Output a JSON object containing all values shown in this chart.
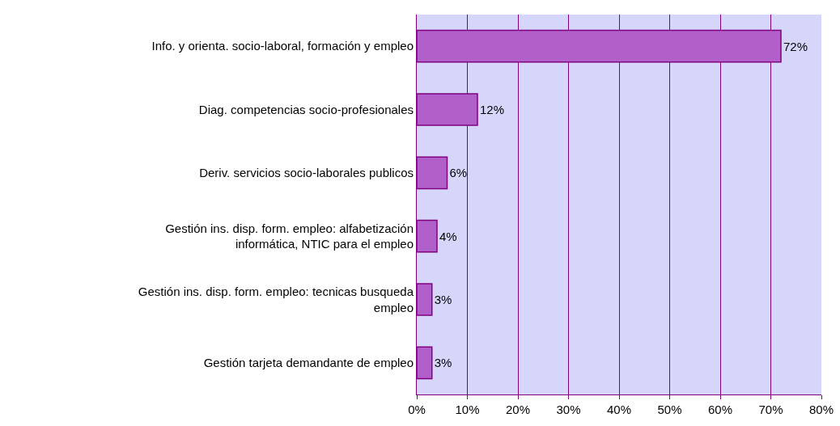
{
  "chart_data": {
    "type": "bar",
    "orientation": "horizontal",
    "categories": [
      "Info. y orienta. socio-laboral, formación y empleo",
      "Diag. competencias socio-profesionales",
      "Deriv. servicios socio-laborales publicos",
      "Gestión ins. disp. form. empleo: alfabetización informática, NTIC para el empleo",
      "Gestión ins. disp. form. empleo: tecnicas busqueda empleo",
      "Gestión tarjeta demandante de empleo"
    ],
    "values": [
      72,
      12,
      6,
      4,
      3,
      3
    ],
    "value_labels": [
      "72%",
      "12%",
      "6%",
      "4%",
      "3%",
      "3%"
    ],
    "color": "#b060c8",
    "xlim": [
      0,
      80
    ],
    "xticks": [
      {
        "value": 0,
        "label": "0%"
      },
      {
        "value": 10,
        "label": "10%"
      },
      {
        "value": 20,
        "label": "20%"
      },
      {
        "value": 30,
        "label": "30%"
      },
      {
        "value": 40,
        "label": "40%"
      },
      {
        "value": 50,
        "label": "50%"
      },
      {
        "value": 60,
        "label": "60%"
      },
      {
        "value": 70,
        "label": "70%"
      },
      {
        "value": 80,
        "label": "80%"
      }
    ],
    "grid": "x"
  }
}
